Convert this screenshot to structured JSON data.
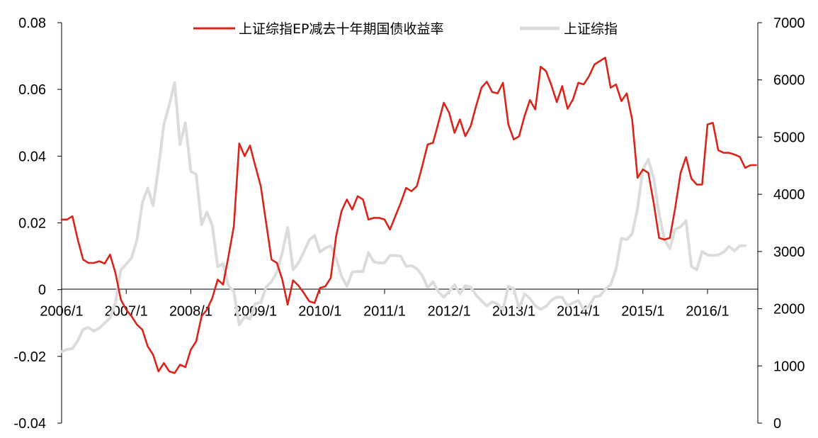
{
  "chart_data": {
    "type": "line",
    "title": "",
    "xlabel": "",
    "ylabel": "",
    "x_tick_labels": [
      "2006/1",
      "2007/1",
      "2008/1",
      "2009/1",
      "2010/1",
      "2011/1",
      "2012/1",
      "2013/1",
      "2014/1",
      "2015/1",
      "2016/1"
    ],
    "y_left": {
      "lim": [
        -0.04,
        0.08
      ],
      "ticks": [
        "0.08",
        "0.06",
        "0.04",
        "0.02",
        "0",
        "-0.02",
        "-0.04"
      ]
    },
    "y_right": {
      "lim": [
        0,
        7000
      ],
      "ticks": [
        "7000",
        "6000",
        "5000",
        "4000",
        "3000",
        "2000",
        "1000",
        "0"
      ]
    },
    "legend_position": "top-center",
    "colors": {
      "ep_spread": "#d9241b",
      "index": "#dcdcdc"
    },
    "series": [
      {
        "name": "上证综指EP减去十年期国债收益率",
        "axis": "left",
        "start": "2006/1",
        "frequency": "monthly",
        "values": [
          0.021,
          0.021,
          0.022,
          0.015,
          0.009,
          0.008,
          0.008,
          0.0085,
          0.0078,
          0.0105,
          0.005,
          -0.003,
          -0.006,
          -0.008,
          -0.0105,
          -0.012,
          -0.017,
          -0.0195,
          -0.0245,
          -0.022,
          -0.0245,
          -0.025,
          -0.0225,
          -0.0232,
          -0.018,
          -0.0155,
          -0.008,
          -0.006,
          -0.0025,
          0.003,
          0.0015,
          0.01,
          0.019,
          0.0438,
          0.04,
          0.0432,
          0.037,
          0.031,
          0.02,
          0.009,
          0.008,
          0.003,
          -0.0045,
          0.0028,
          0.0012,
          -0.001,
          -0.0035,
          -0.004,
          0.0005,
          0.001,
          0.0035,
          0.016,
          0.0235,
          0.027,
          0.024,
          0.028,
          0.027,
          0.021,
          0.0215,
          0.0215,
          0.021,
          0.018,
          0.022,
          0.026,
          0.0305,
          0.0295,
          0.031,
          0.037,
          0.0435,
          0.044,
          0.05,
          0.056,
          0.053,
          0.047,
          0.051,
          0.046,
          0.049,
          0.055,
          0.0605,
          0.0623,
          0.0592,
          0.0588,
          0.062,
          0.0495,
          0.045,
          0.046,
          0.052,
          0.0568,
          0.054,
          0.0668,
          0.0655,
          0.0612,
          0.0562,
          0.061,
          0.0542,
          0.057,
          0.062,
          0.0615,
          0.064,
          0.0675,
          0.0685,
          0.0695,
          0.0605,
          0.0615,
          0.0565,
          0.0588,
          0.051,
          0.0335,
          0.036,
          0.035,
          0.026,
          0.0155,
          0.015,
          0.0155,
          0.0245,
          0.035,
          0.0397,
          0.0333,
          0.0315,
          0.0315,
          0.0495,
          0.05,
          0.0418,
          0.041,
          0.041,
          0.0405,
          0.0398,
          0.0365,
          0.0373,
          0.0373
        ]
      },
      {
        "name": "上证综指",
        "axis": "right",
        "start": "2006/1",
        "frequency": "monthly",
        "values": [
          1250,
          1290,
          1300,
          1440,
          1640,
          1670,
          1610,
          1660,
          1750,
          1840,
          2100,
          2680,
          2780,
          2890,
          3200,
          3850,
          4110,
          3800,
          4470,
          5220,
          5560,
          5950,
          4870,
          5250,
          4400,
          4350,
          3470,
          3690,
          3450,
          2730,
          2790,
          2400,
          2300,
          1720,
          1860,
          1820,
          2090,
          2110,
          2380,
          2470,
          2640,
          2980,
          3420,
          2680,
          2800,
          2990,
          3200,
          3280,
          2990,
          3060,
          3100,
          2880,
          2570,
          2390,
          2640,
          2650,
          2650,
          2980,
          2820,
          2800,
          2800,
          2930,
          2930,
          2920,
          2740,
          2750,
          2700,
          2580,
          2370,
          2470,
          2300,
          2200,
          2300,
          2420,
          2260,
          2400,
          2380,
          2240,
          2140,
          2050,
          2120,
          2080,
          1980,
          2390,
          2350,
          2000,
          2260,
          2180,
          2050,
          1990,
          2040,
          2150,
          2200,
          2200,
          2050,
          2100,
          2140,
          1990,
          2040,
          2210,
          2220,
          2340,
          2420,
          2690,
          3230,
          3210,
          3310,
          3750,
          4440,
          4610,
          4280,
          3660,
          3210,
          3050,
          3390,
          3430,
          3540,
          2740,
          2680,
          3000,
          2940,
          2930,
          2940,
          2990,
          3090,
          3010,
          3100,
          3100
        ]
      }
    ]
  }
}
